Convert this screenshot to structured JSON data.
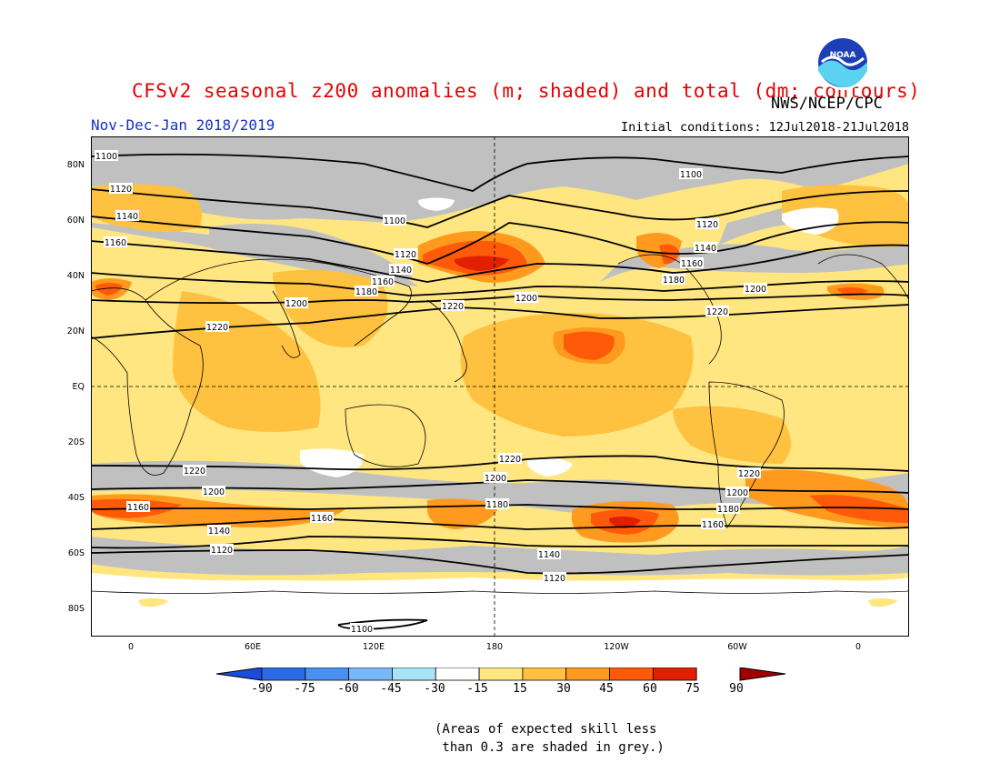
{
  "title": "CFSv2 seasonal z200 anomalies (m; shaded) and total (dm; contours)",
  "period": "Nov-Dec-Jan 2018/2019",
  "initial_conditions": "Initial conditions: 12Jul2018-21Jul2018",
  "agency": "NWS/NCEP/CPC",
  "logo_text": "NOAA",
  "lat_labels": [
    "80N",
    "60N",
    "40N",
    "20N",
    "EQ",
    "20S",
    "40S",
    "60S",
    "80S"
  ],
  "lon_labels": [
    "0",
    "60E",
    "120E",
    "180",
    "120W",
    "60W",
    "0"
  ],
  "contour_labels": [
    {
      "text": "1100",
      "id": "c1100n-a"
    },
    {
      "text": "1100",
      "id": "c1100n-b"
    },
    {
      "text": "1100",
      "id": "c1100n-c"
    },
    {
      "text": "1120",
      "id": "c1120n-a"
    },
    {
      "text": "1120",
      "id": "c1120n-b"
    },
    {
      "text": "1120",
      "id": "c1120n-c"
    },
    {
      "text": "1140",
      "id": "c1140n-a"
    },
    {
      "text": "1140",
      "id": "c1140n-b"
    },
    {
      "text": "1140",
      "id": "c1140n-c"
    },
    {
      "text": "1160",
      "id": "c1160n-a"
    },
    {
      "text": "1160",
      "id": "c1160n-b"
    },
    {
      "text": "1160",
      "id": "c1160n-c"
    },
    {
      "text": "1180",
      "id": "c1180n-a"
    },
    {
      "text": "1180",
      "id": "c1180n-b"
    },
    {
      "text": "1200",
      "id": "c1200n-a"
    },
    {
      "text": "1200",
      "id": "c1200n-b"
    },
    {
      "text": "1200",
      "id": "c1200n-c"
    },
    {
      "text": "1220",
      "id": "c1220n-a"
    },
    {
      "text": "1220",
      "id": "c1220n-b"
    },
    {
      "text": "1220",
      "id": "c1220n-c"
    },
    {
      "text": "1220",
      "id": "c1220s-a"
    },
    {
      "text": "1220",
      "id": "c1220s-b"
    },
    {
      "text": "1220",
      "id": "c1220s-c"
    },
    {
      "text": "1200",
      "id": "c1200s-a"
    },
    {
      "text": "1200",
      "id": "c1200s-b"
    },
    {
      "text": "1200",
      "id": "c1200s-c"
    },
    {
      "text": "1180",
      "id": "c1180s-a"
    },
    {
      "text": "1180",
      "id": "c1180s-b"
    },
    {
      "text": "1160",
      "id": "c1160s-a"
    },
    {
      "text": "1160",
      "id": "c1160s-b"
    },
    {
      "text": "1160",
      "id": "c1160s-c"
    },
    {
      "text": "1140",
      "id": "c1140s-a"
    },
    {
      "text": "1140",
      "id": "c1140s-b"
    },
    {
      "text": "1120",
      "id": "c1120s-a"
    },
    {
      "text": "1120",
      "id": "c1120s-b"
    },
    {
      "text": "1100",
      "id": "c1100s-a"
    }
  ],
  "colorbar": {
    "labels": [
      "-90",
      "-75",
      "-60",
      "-45",
      "-30",
      "-15",
      "15",
      "30",
      "45",
      "60",
      "75",
      "90"
    ],
    "colors": [
      "#1a4bdc",
      "#2d6be6",
      "#4a90f0",
      "#78b8f8",
      "#a6e4f8",
      "#ffffff",
      "#ffe680",
      "#ffc240",
      "#ff9a1e",
      "#ff5a0a",
      "#e02000",
      "#a00000"
    ]
  },
  "footnote": "(Areas of expected skill less\n than 0.3 are shaded in grey.)"
}
